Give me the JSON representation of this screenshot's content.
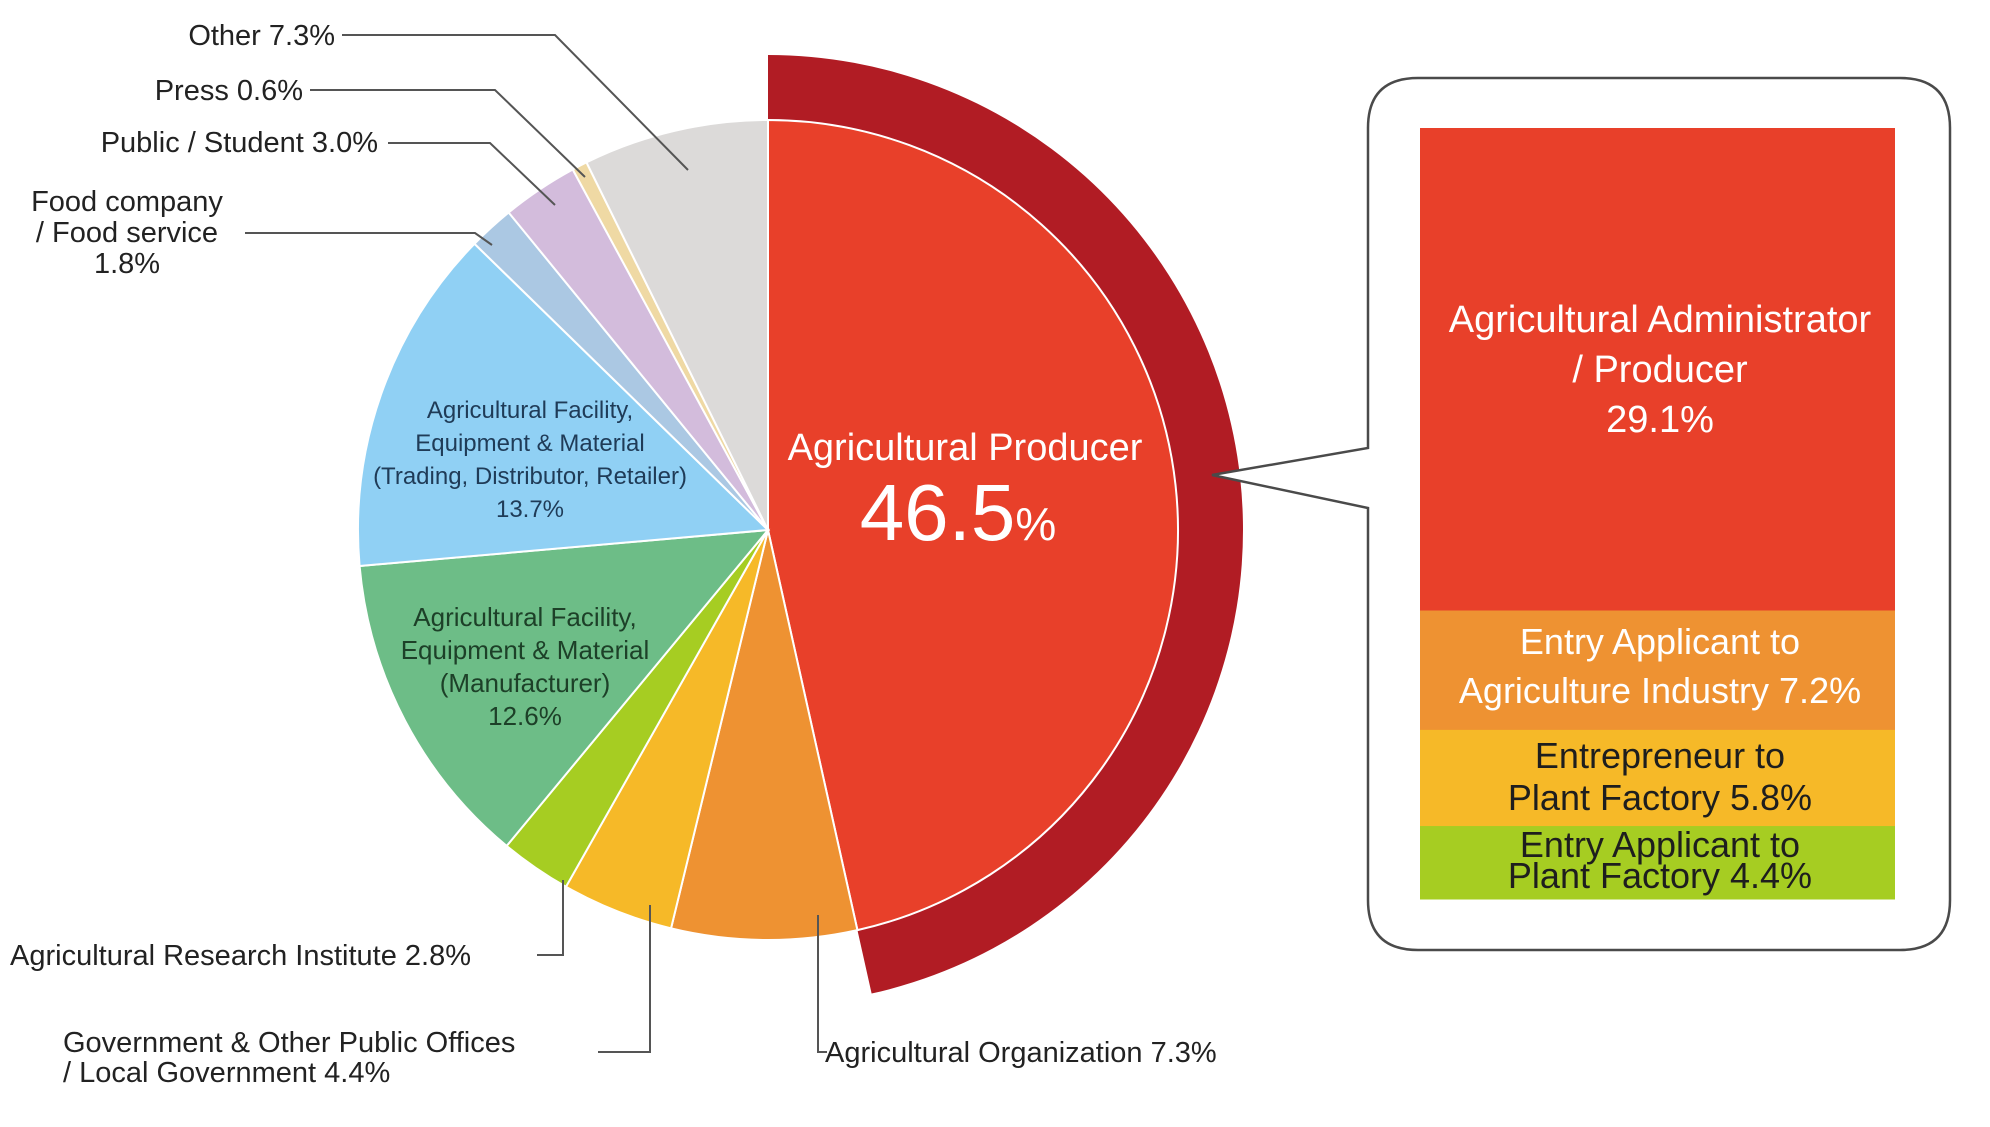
{
  "colors": {
    "outer_ring": "#b11c24",
    "leader_line": "#555555",
    "callout_border": "#4a4a4a"
  },
  "chart_data": {
    "type": "pie",
    "title": "",
    "slices": [
      {
        "label": "Agricultural Producer",
        "value": 46.5,
        "color": "#e8402a"
      },
      {
        "label": "Agricultural Organization",
        "value": 7.3,
        "color": "#ee9232"
      },
      {
        "label": "Government & Other Public Offices / Local Government",
        "value": 4.4,
        "color": "#f6b928"
      },
      {
        "label": "Agricultural Research Institute",
        "value": 2.8,
        "color": "#a6cd22"
      },
      {
        "label": "Agricultural Facility, Equipment & Material (Manufacturer)",
        "value": 12.6,
        "color": "#6dbd87"
      },
      {
        "label": "Agricultural Facility, Equipment & Material (Trading, Distributor, Retailer)",
        "value": 13.7,
        "color": "#90d0f4"
      },
      {
        "label": "Food company / Food service",
        "value": 1.8,
        "color": "#abc8e3"
      },
      {
        "label": "Public / Student",
        "value": 3.0,
        "color": "#d3bcdc"
      },
      {
        "label": "Press",
        "value": 0.6,
        "color": "#efd9a4"
      },
      {
        "label": "Other",
        "value": 7.3,
        "color": "#dcdad9"
      }
    ],
    "breakdown": {
      "of": "Agricultural Producer",
      "items": [
        {
          "label": "Agricultural Administrator / Producer",
          "value": 29.1,
          "color": "#e8402a"
        },
        {
          "label": "Entry Applicant to Agriculture Industry",
          "value": 7.2,
          "color": "#ee9232"
        },
        {
          "label": "Entrepreneur to Plant Factory",
          "value": 5.8,
          "color": "#f6b928"
        },
        {
          "label": "Entry Applicant to Plant Factory",
          "value": 4.4,
          "color": "#a6cd22"
        }
      ]
    }
  },
  "labels": {
    "producer_name": "Agricultural Producer",
    "producer_value": "46.5",
    "producer_unit": "%",
    "other": "Other 7.3%",
    "press": "Press 0.6%",
    "public": "Public / Student 3.0%",
    "food_line1": "Food company",
    "food_line2": "/ Food service",
    "food_line3": "1.8%",
    "trading_line1": "Agricultural Facility,",
    "trading_line2": "Equipment & Material",
    "trading_line3": "(Trading, Distributor, Retailer)",
    "trading_line4": "13.7%",
    "manufacturer_line1": "Agricultural Facility,",
    "manufacturer_line2": "Equipment & Material",
    "manufacturer_line3": "(Manufacturer)",
    "manufacturer_line4": "12.6%",
    "research": "Agricultural Research Institute 2.8%",
    "government_line1": "Government & Other Public Offices",
    "government_line2": "/ Local Government 4.4%",
    "organization": "Agricultural Organization 7.3%",
    "bd_admin_line1": "Agricultural  Administrator",
    "bd_admin_line2": "/ Producer",
    "bd_admin_line3": "29.1%",
    "bd_entry_ag_line1": "Entry Applicant to",
    "bd_entry_ag_line2": "Agriculture Industry 7.2%",
    "bd_entrepreneur_line1": "Entrepreneur to",
    "bd_entrepreneur_line2": "Plant Factory 5.8%",
    "bd_entry_pf_line1": "Entry Applicant to",
    "bd_entry_pf_line2": "Plant Factory   4.4%"
  }
}
